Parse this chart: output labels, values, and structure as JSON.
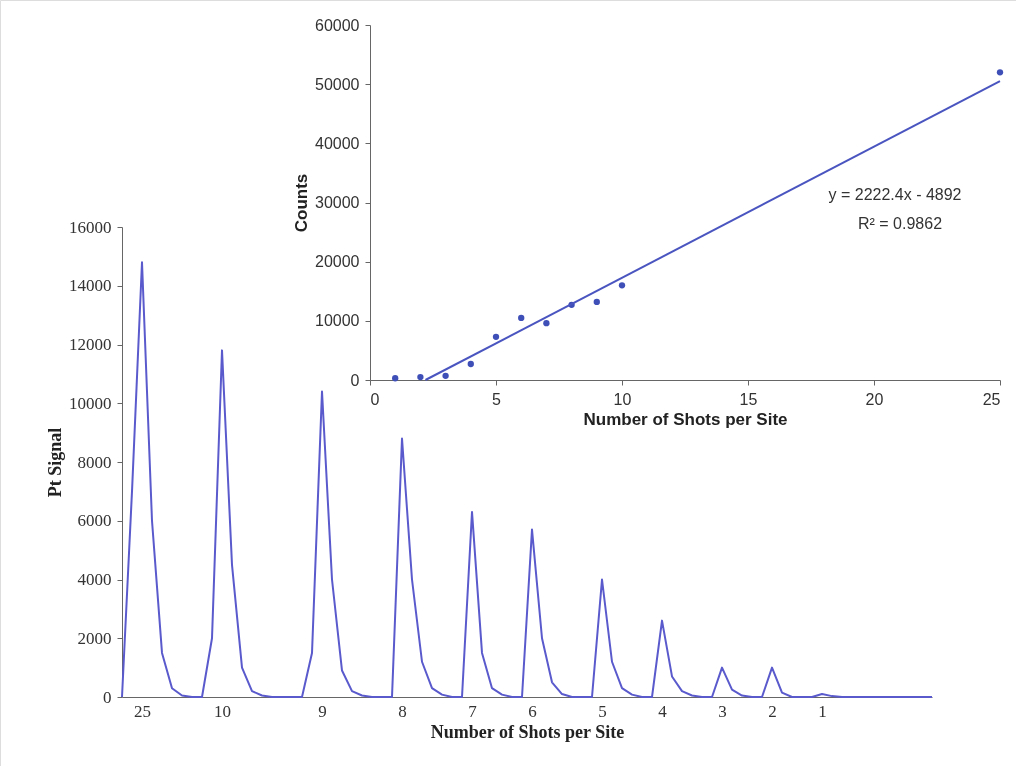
{
  "chart_data": [
    {
      "type": "line",
      "xlabel": "Number of Shots per Site",
      "ylabel": "Pt Signal",
      "ylim": [
        0,
        16000
      ],
      "yticks": [
        0,
        2000,
        4000,
        6000,
        8000,
        10000,
        12000,
        14000,
        16000
      ],
      "grid": false,
      "marker": "none",
      "line_style": "solid",
      "categories": [
        null,
        null,
        "25",
        null,
        null,
        null,
        null,
        null,
        null,
        null,
        "10",
        null,
        null,
        null,
        null,
        null,
        null,
        null,
        null,
        null,
        "9",
        null,
        null,
        null,
        null,
        null,
        null,
        null,
        "8",
        null,
        null,
        null,
        null,
        null,
        null,
        "7",
        null,
        null,
        null,
        null,
        null,
        "6",
        null,
        null,
        null,
        null,
        null,
        null,
        "5",
        null,
        null,
        null,
        null,
        null,
        "4",
        null,
        null,
        null,
        null,
        null,
        "3",
        null,
        null,
        null,
        null,
        "2",
        null,
        null,
        null,
        null,
        "1",
        null,
        null,
        null,
        null,
        null,
        null,
        null,
        null,
        null,
        null,
        null
      ],
      "series": [
        {
          "color": "#5a5acd",
          "values": [
            0,
            7000,
            14800,
            6000,
            1500,
            300,
            50,
            0,
            0,
            2000,
            11800,
            4500,
            1000,
            200,
            50,
            0,
            0,
            0,
            0,
            1500,
            10400,
            4000,
            900,
            200,
            50,
            0,
            0,
            0,
            8800,
            4000,
            1200,
            300,
            80,
            0,
            0,
            6300,
            1500,
            300,
            80,
            0,
            0,
            5700,
            2000,
            500,
            100,
            0,
            0,
            0,
            4000,
            1200,
            300,
            80,
            0,
            0,
            2600,
            700,
            200,
            50,
            0,
            0,
            1000,
            250,
            50,
            0,
            0,
            1000,
            150,
            0,
            0,
            0,
            100,
            30,
            0,
            0,
            0,
            0,
            0,
            0,
            0,
            0,
            0,
            0
          ]
        }
      ]
    },
    {
      "type": "scatter",
      "xlabel": "Number of Shots per Site",
      "ylabel": "Counts",
      "xlim": [
        0,
        25
      ],
      "xticks": [
        0,
        5,
        10,
        15,
        20,
        25
      ],
      "ylim": [
        0,
        60000
      ],
      "yticks": [
        0,
        10000,
        20000,
        30000,
        40000,
        50000,
        60000
      ],
      "grid": false,
      "annotations": [
        "y = 2222.4x - 4892",
        "R² = 0.9862"
      ],
      "series": [
        {
          "type": "scatter",
          "marker": "circle",
          "color": "#3f4fb8",
          "x": [
            1,
            2,
            3,
            4,
            5,
            6,
            7,
            8,
            9,
            10,
            25
          ],
          "values": [
            300,
            500,
            700,
            2700,
            7300,
            10500,
            9600,
            12700,
            13200,
            16000,
            52000
          ]
        },
        {
          "type": "line",
          "line_style": "solid",
          "marker": "none",
          "color": "#4a55c0",
          "x": [
            2.2,
            25
          ],
          "values": [
            0,
            50500
          ]
        }
      ]
    }
  ]
}
